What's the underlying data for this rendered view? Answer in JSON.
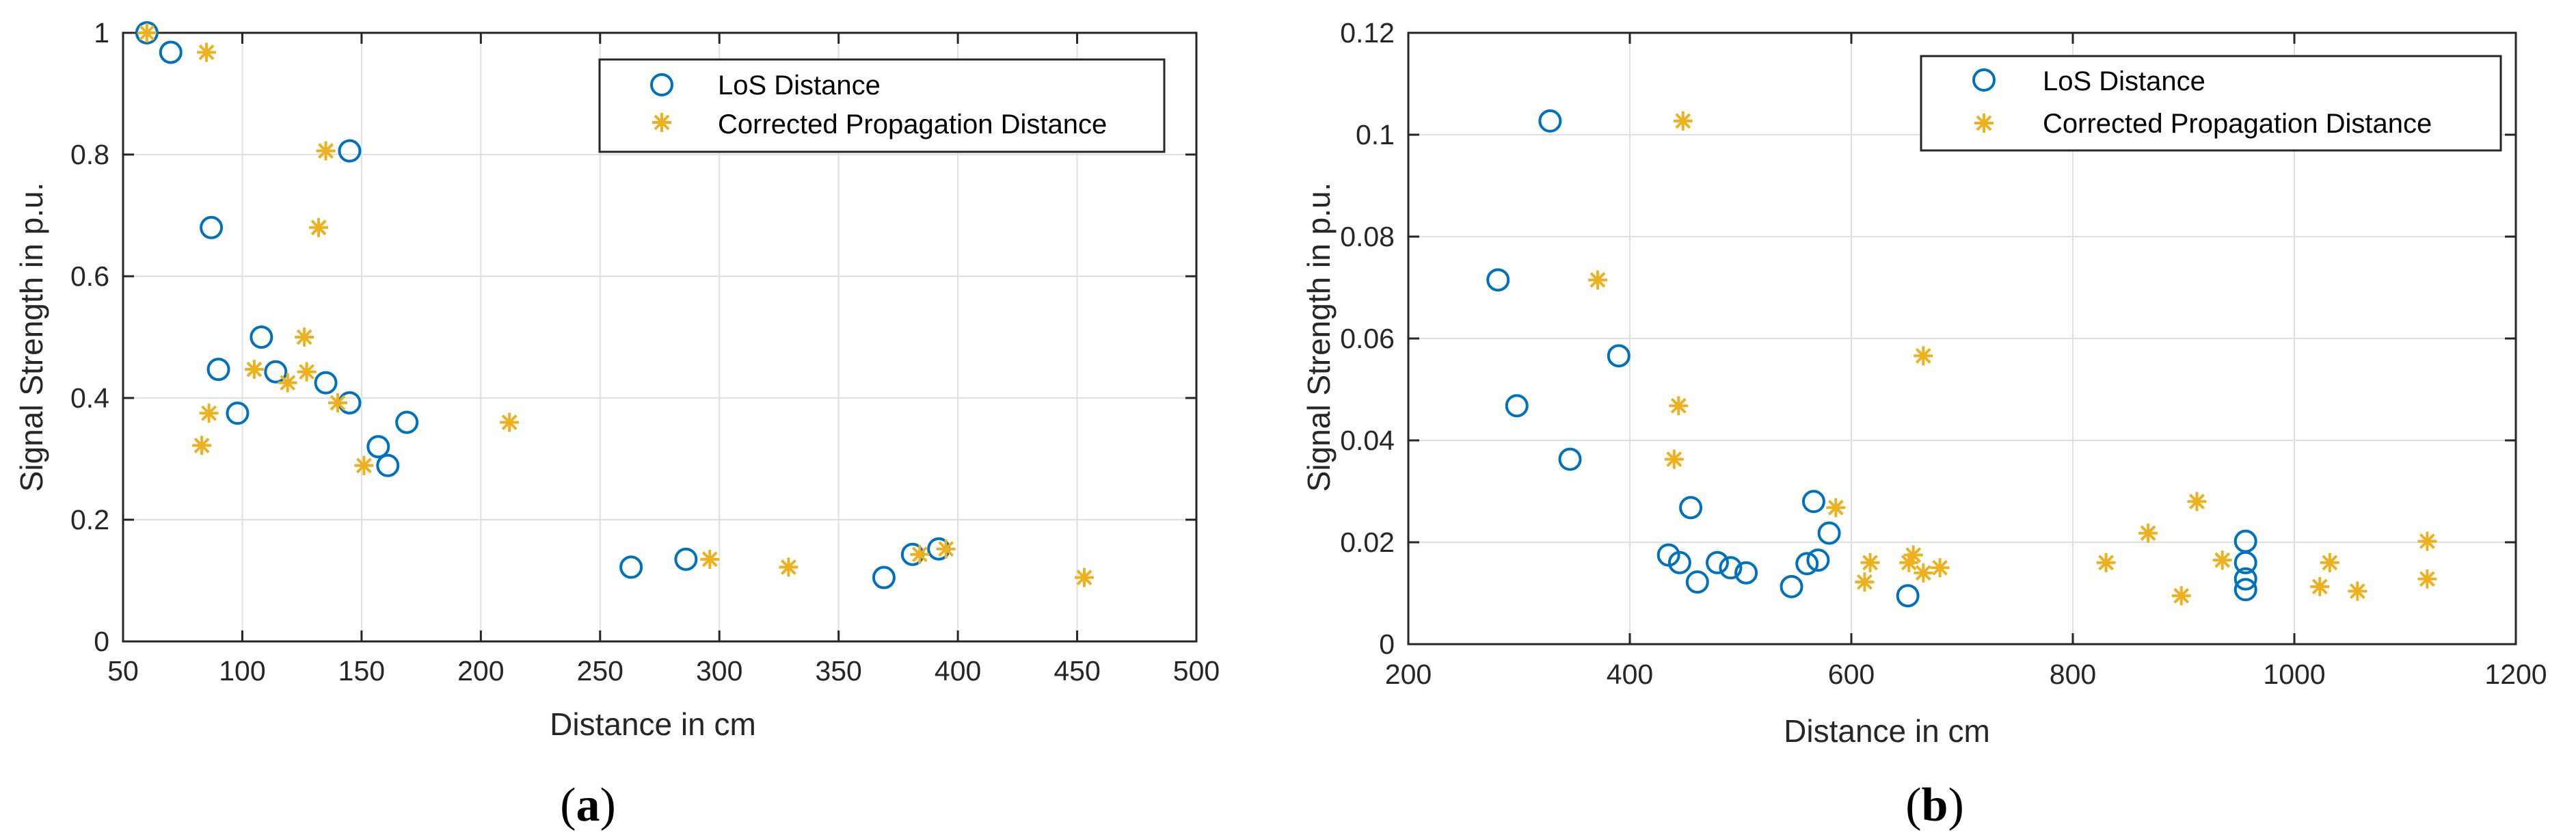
{
  "chart_data": [
    {
      "type": "scatter",
      "panel_label": {
        "open": "(",
        "letter": "a",
        "close": ")"
      },
      "xlabel": "Distance in cm",
      "ylabel": "Signal Strength in p.u.",
      "xlim": [
        50,
        500
      ],
      "ylim": [
        0,
        1
      ],
      "xticks": [
        50,
        100,
        150,
        200,
        250,
        300,
        350,
        400,
        450,
        500
      ],
      "yticks": [
        0,
        0.2,
        0.4,
        0.6,
        0.8,
        1
      ],
      "xtick_labels": [
        "50",
        "100",
        "150",
        "200",
        "250",
        "300",
        "350",
        "400",
        "450",
        "500"
      ],
      "ytick_labels": [
        "0",
        "0.2",
        "0.4",
        "0.6",
        "0.8",
        "1"
      ],
      "grid": true,
      "legend_position": "top-right",
      "series": [
        {
          "name": "LoS Distance",
          "marker": "circle",
          "color": "#0072BD",
          "points": [
            [
              60,
              1.0
            ],
            [
              70,
              0.968
            ],
            [
              87,
              0.68
            ],
            [
              90,
              0.447
            ],
            [
              98,
              0.375
            ],
            [
              108,
              0.5
            ],
            [
              114,
              0.443
            ],
            [
              135,
              0.425
            ],
            [
              145,
              0.806
            ],
            [
              145,
              0.392
            ],
            [
              157,
              0.32
            ],
            [
              161,
              0.289
            ],
            [
              169,
              0.36
            ],
            [
              263,
              0.122
            ],
            [
              286,
              0.135
            ],
            [
              369,
              0.105
            ],
            [
              381,
              0.143
            ],
            [
              392,
              0.152
            ]
          ]
        },
        {
          "name": "Corrected Propagation Distance",
          "marker": "asterisk",
          "color": "#EDB120",
          "points": [
            [
              60,
              1.0
            ],
            [
              85,
              0.968
            ],
            [
              135,
              0.806
            ],
            [
              132,
              0.68
            ],
            [
              86,
              0.375
            ],
            [
              83,
              0.322
            ],
            [
              105,
              0.447
            ],
            [
              126,
              0.5
            ],
            [
              127,
              0.443
            ],
            [
              119,
              0.425
            ],
            [
              140,
              0.392
            ],
            [
              151,
              0.289
            ],
            [
              212,
              0.36
            ],
            [
              296,
              0.135
            ],
            [
              329,
              0.122
            ],
            [
              384,
              0.143
            ],
            [
              395,
              0.152
            ],
            [
              453,
              0.105
            ]
          ]
        }
      ]
    },
    {
      "type": "scatter",
      "panel_label": {
        "open": "(",
        "letter": "b",
        "close": ")"
      },
      "xlabel": "Distance in cm",
      "ylabel": "Signal Strength in p.u.",
      "xlim": [
        200,
        1200
      ],
      "ylim": [
        0,
        0.12
      ],
      "xticks": [
        200,
        400,
        600,
        800,
        1000,
        1200
      ],
      "yticks": [
        0,
        0.02,
        0.04,
        0.06,
        0.08,
        0.1,
        0.12
      ],
      "xtick_labels": [
        "200",
        "400",
        "600",
        "800",
        "1000",
        "1200"
      ],
      "ytick_labels": [
        "0",
        "0.02",
        "0.04",
        "0.06",
        "0.08",
        "0.1",
        "0.12"
      ],
      "grid": true,
      "legend_position": "top-right",
      "series": [
        {
          "name": "LoS Distance",
          "marker": "circle",
          "color": "#0072BD",
          "points": [
            [
              281,
              0.0715
            ],
            [
              298,
              0.0468
            ],
            [
              328,
              0.1027
            ],
            [
              346,
              0.0363
            ],
            [
              390,
              0.0566
            ],
            [
              435,
              0.0175
            ],
            [
              445,
              0.016
            ],
            [
              455,
              0.0268
            ],
            [
              461,
              0.0122
            ],
            [
              479,
              0.016
            ],
            [
              491,
              0.015
            ],
            [
              505,
              0.014
            ],
            [
              546,
              0.0113
            ],
            [
              560,
              0.0158
            ],
            [
              566,
              0.028
            ],
            [
              570,
              0.0165
            ],
            [
              580,
              0.0218
            ],
            [
              651,
              0.0095
            ],
            [
              956,
              0.0202
            ],
            [
              956,
              0.016
            ],
            [
              956,
              0.0128
            ],
            [
              956,
              0.0107
            ]
          ]
        },
        {
          "name": "Corrected Propagation Distance",
          "marker": "asterisk",
          "color": "#EDB120",
          "points": [
            [
              448,
              0.1027
            ],
            [
              371,
              0.0715
            ],
            [
              444,
              0.0468
            ],
            [
              440,
              0.0363
            ],
            [
              665,
              0.0566
            ],
            [
              586,
              0.0268
            ],
            [
              612,
              0.0122
            ],
            [
              617,
              0.016
            ],
            [
              652,
              0.016
            ],
            [
              656,
              0.0175
            ],
            [
              665,
              0.014
            ],
            [
              680,
              0.015
            ],
            [
              830,
              0.016
            ],
            [
              868,
              0.0218
            ],
            [
              898,
              0.0095
            ],
            [
              912,
              0.028
            ],
            [
              935,
              0.0165
            ],
            [
              1023,
              0.0113
            ],
            [
              1032,
              0.016
            ],
            [
              1057,
              0.0104
            ],
            [
              1120,
              0.0202
            ],
            [
              1120,
              0.0128
            ]
          ]
        }
      ]
    }
  ]
}
